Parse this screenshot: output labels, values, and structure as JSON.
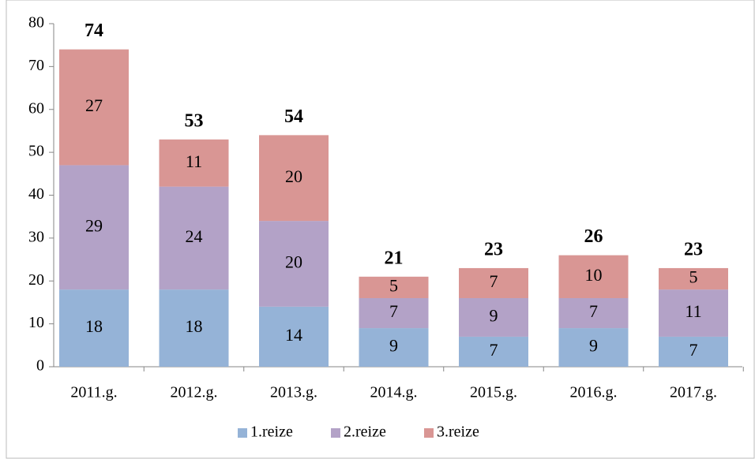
{
  "chart_data": {
    "type": "stacked_bar",
    "categories": [
      "2011.g.",
      "2012.g.",
      "2013.g.",
      "2014.g.",
      "2015.g.",
      "2016.g.",
      "2017.g."
    ],
    "series": [
      {
        "name": "1.reize",
        "color": "#95b3d7",
        "values": [
          18,
          18,
          14,
          9,
          7,
          9,
          7
        ]
      },
      {
        "name": "2.reize",
        "color": "#b3a2c7",
        "values": [
          29,
          24,
          20,
          7,
          9,
          7,
          11
        ]
      },
      {
        "name": "3.reize",
        "color": "#d99694",
        "values": [
          27,
          11,
          20,
          5,
          7,
          10,
          5
        ]
      }
    ],
    "totals": [
      74,
      53,
      54,
      21,
      23,
      26,
      23
    ],
    "ylim": [
      0,
      80
    ],
    "yticks": [
      0,
      10,
      20,
      30,
      40,
      50,
      60,
      70,
      80
    ],
    "grid": false,
    "legend": "bottom"
  }
}
